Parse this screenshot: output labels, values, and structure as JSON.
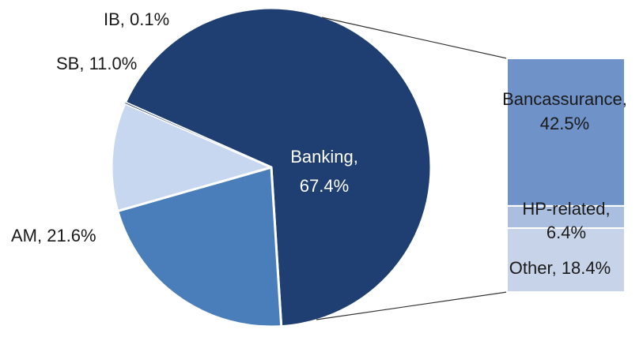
{
  "chart_data": {
    "type": "pie",
    "title": "",
    "colors": {
      "Banking": "#1f3f72",
      "AM": "#4a7ebb",
      "SB": "#c6d7ef",
      "IB": "#0b2c5a",
      "Bancassurance": "#6f92c8",
      "HP-related": "#aabfdf",
      "Other": "#c7d3e8",
      "leader": "#333333"
    },
    "slices": [
      {
        "name": "Banking",
        "value": 67.4,
        "label": "Banking,",
        "value_label": "67.4%"
      },
      {
        "name": "AM",
        "value": 21.6,
        "label": "AM, 21.6%"
      },
      {
        "name": "SB",
        "value": 11.0,
        "label": "SB, 11.0%"
      },
      {
        "name": "IB",
        "value": 0.1,
        "label": "IB, 0.1%"
      }
    ],
    "breakdown": {
      "of": "Banking",
      "type": "stacked-bar",
      "segments": [
        {
          "name": "Bancassurance",
          "value": 42.5,
          "label": "Bancassurance,",
          "value_label": "42.5%"
        },
        {
          "name": "HP-related",
          "value": 6.4,
          "label": "HP-related,",
          "value_label": "6.4%"
        },
        {
          "name": "Other",
          "value": 18.4,
          "label": "Other, 18.4%"
        }
      ]
    }
  }
}
